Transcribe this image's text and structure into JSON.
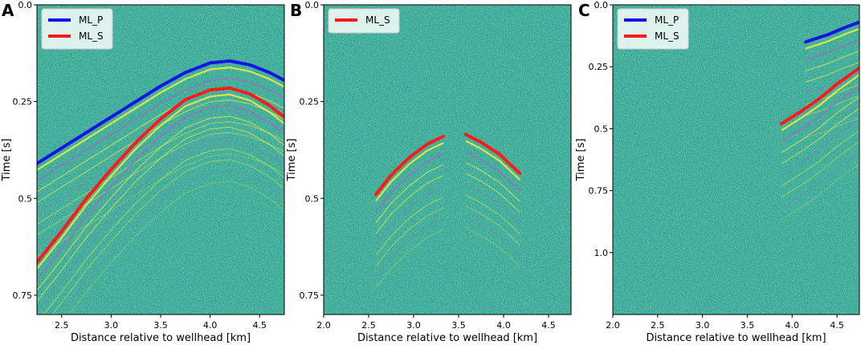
{
  "colors": {
    "background": "#2aa89a",
    "p_pick": "#1414e6",
    "s_pick": "#ff1a1a",
    "event_yellow": "#f2ee3a",
    "event_purple": "#8c7ab0"
  },
  "chart_data": [
    {
      "panel": "A",
      "type": "scatter",
      "title": "",
      "xlabel": "Distance relative to wellhead [km]",
      "ylabel": "Time [s]",
      "xlim": [
        2.25,
        4.75
      ],
      "ylim": [
        0.0,
        0.8
      ],
      "y_inverted": true,
      "xticks": [
        "2.5",
        "3.0",
        "3.5",
        "4.0",
        "4.5"
      ],
      "yticks": [
        "0.0",
        "0.25",
        "0.5",
        "0.75"
      ],
      "legend": [
        "ML_P",
        "ML_S"
      ],
      "legend_position": "upper-left",
      "series": [
        {
          "name": "ML_P",
          "color": "#1414e6",
          "x": [
            2.25,
            2.5,
            2.75,
            3.0,
            3.25,
            3.5,
            3.75,
            4.0,
            4.2,
            4.4,
            4.6,
            4.75
          ],
          "y": [
            0.41,
            0.37,
            0.33,
            0.29,
            0.25,
            0.21,
            0.175,
            0.15,
            0.145,
            0.155,
            0.175,
            0.195
          ]
        },
        {
          "name": "ML_S",
          "color": "#ff1a1a",
          "x": [
            2.25,
            2.5,
            2.75,
            3.0,
            3.25,
            3.5,
            3.75,
            4.0,
            4.2,
            4.4,
            4.6,
            4.75
          ],
          "y": [
            0.665,
            0.585,
            0.5,
            0.425,
            0.355,
            0.295,
            0.245,
            0.22,
            0.215,
            0.23,
            0.26,
            0.29
          ]
        }
      ]
    },
    {
      "panel": "B",
      "type": "scatter",
      "title": "",
      "xlabel": "Distance relative to wellhead [km]",
      "ylabel": "Time [s]",
      "xlim": [
        2.0,
        4.75
      ],
      "ylim": [
        0.0,
        0.8
      ],
      "y_inverted": true,
      "xticks": [
        "2.0",
        "2.5",
        "3.0",
        "3.5",
        "4.0",
        "4.5"
      ],
      "yticks": [
        "0.0",
        "0.25",
        "0.5",
        "0.75"
      ],
      "legend": [
        "ML_S"
      ],
      "legend_position": "upper-left",
      "series": [
        {
          "name": "ML_S",
          "color": "#ff1a1a",
          "segments": [
            {
              "x": [
                2.58,
                2.75,
                2.95,
                3.15,
                3.33
              ],
              "y": [
                0.49,
                0.44,
                0.395,
                0.36,
                0.34
              ]
            },
            {
              "x": [
                3.58,
                3.75,
                3.95,
                4.18
              ],
              "y": [
                0.335,
                0.355,
                0.385,
                0.435
              ]
            }
          ]
        }
      ]
    },
    {
      "panel": "C",
      "type": "scatter",
      "title": "",
      "xlabel": "Distance relative to wellhead [km]",
      "ylabel": "Time [s]",
      "xlim": [
        2.0,
        4.75
      ],
      "ylim": [
        0.0,
        1.25
      ],
      "y_inverted": true,
      "xticks": [
        "2.0",
        "2.5",
        "3.0",
        "3.5",
        "4.0",
        "4.5"
      ],
      "yticks": [
        "0.0",
        "0.25",
        "0.5",
        "0.75",
        "1.0"
      ],
      "legend": [
        "ML_P",
        "ML_S"
      ],
      "legend_position": "upper-left",
      "series": [
        {
          "name": "ML_P",
          "color": "#1414e6",
          "x": [
            4.15,
            4.4,
            4.6,
            4.75
          ],
          "y": [
            0.15,
            0.12,
            0.09,
            0.07
          ]
        },
        {
          "name": "ML_S",
          "color": "#ff1a1a",
          "x": [
            3.88,
            4.1,
            4.3,
            4.5,
            4.75
          ],
          "y": [
            0.48,
            0.43,
            0.38,
            0.32,
            0.255
          ]
        }
      ]
    }
  ]
}
